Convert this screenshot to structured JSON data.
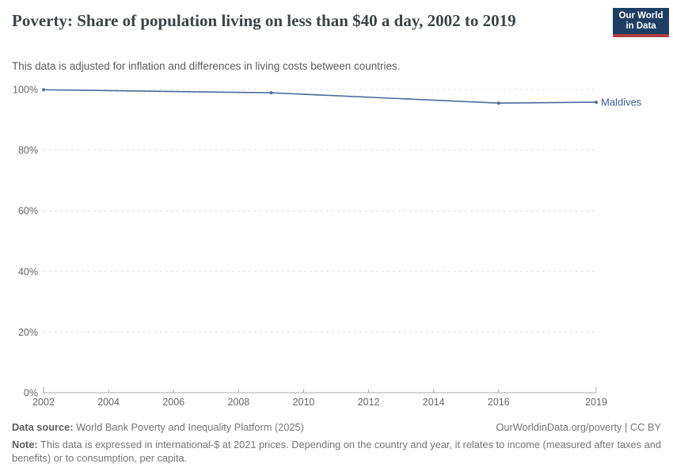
{
  "header": {
    "title": "Poverty: Share of population living on less than $40 a day, 2002 to 2019",
    "subtitle": "This data is adjusted for inflation and differences in living costs between countries.",
    "logo": {
      "line1": "Our World",
      "line2": "in Data",
      "bg_color": "#1d3d63",
      "accent_color": "#b13c3c"
    }
  },
  "chart_data": {
    "type": "line",
    "title": "Poverty: Share of population living on less than $40 a day, 2002 to 2019",
    "xlabel": "",
    "ylabel": "",
    "xlim": [
      2002,
      2019
    ],
    "ylim": [
      0,
      100
    ],
    "grid": true,
    "legend_position": "end-of-line",
    "x_ticks": [
      {
        "value": 2002,
        "label": "2002"
      },
      {
        "value": 2004,
        "label": "2004"
      },
      {
        "value": 2006,
        "label": "2006"
      },
      {
        "value": 2008,
        "label": "2008"
      },
      {
        "value": 2010,
        "label": "2010"
      },
      {
        "value": 2012,
        "label": "2012"
      },
      {
        "value": 2014,
        "label": "2014"
      },
      {
        "value": 2016,
        "label": "2016"
      },
      {
        "value": 2019,
        "label": "2019"
      }
    ],
    "y_ticks": [
      {
        "value": 0,
        "label": "0%"
      },
      {
        "value": 20,
        "label": "20%"
      },
      {
        "value": 40,
        "label": "40%"
      },
      {
        "value": 60,
        "label": "60%"
      },
      {
        "value": 80,
        "label": "80%"
      },
      {
        "value": 100,
        "label": "100%"
      }
    ],
    "series": [
      {
        "name": "Maldives",
        "color": "#4c6a9c",
        "label_color": "#3d5c96",
        "x": [
          2002,
          2009,
          2016,
          2019
        ],
        "values": [
          99.9,
          98.9,
          95.5,
          95.8
        ]
      }
    ],
    "colors": {
      "gridline": "#dddddd",
      "axis": "#a8a8a8",
      "tick_label": "#666666"
    }
  },
  "footer": {
    "data_source_label": "Data source:",
    "data_source_text": " World Bank Poverty and Inequality Platform (2025)",
    "attribution": "OurWorldinData.org/poverty | CC BY",
    "note_label": "Note:",
    "note_text": " This data is expressed in international-$ at 2021 prices. Depending on the country and year, it relates to income (measured after taxes and benefits) or to consumption, per capita."
  }
}
